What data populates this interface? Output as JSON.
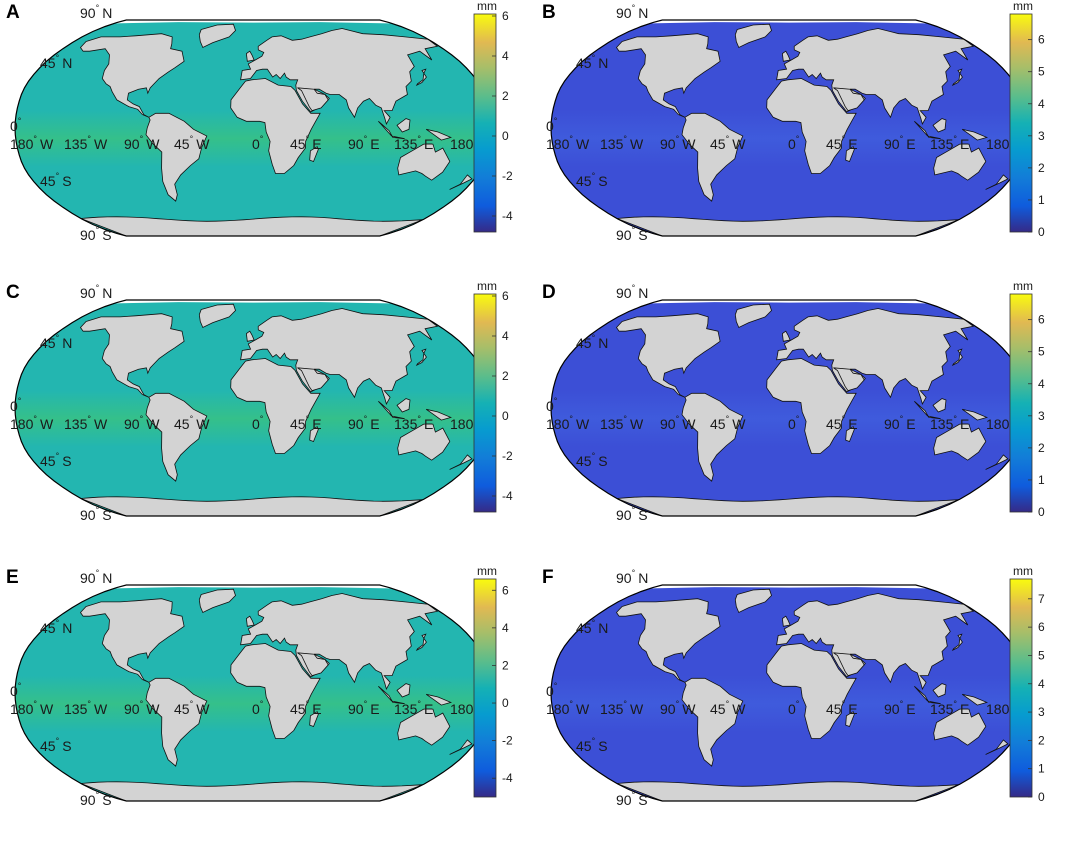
{
  "figure": {
    "colors": {
      "land": "#d3d3d3",
      "coast": "#111111",
      "diverging_sea": "#23b6b0",
      "diverging_band": "#35c08a",
      "sequential_sea": "#3c4fd6",
      "sequential_band": "#3f5bdc",
      "ice": "#ffffff"
    },
    "colormap": "parula",
    "panels": [
      {
        "id": "A",
        "letter": "A",
        "unit": "mm",
        "scale": "diverging",
        "ticks": [
          "6",
          "4",
          "2",
          "0",
          "-2",
          "-4"
        ],
        "tick_values": [
          6,
          4,
          2,
          0,
          -2,
          -4
        ],
        "range": [
          -4.8,
          6.1
        ],
        "lat_labels": [
          "90",
          "45",
          "0",
          "45",
          "90"
        ],
        "lat_hemis": [
          "N",
          "N",
          "",
          "S",
          "S"
        ],
        "lon_labels": [
          "180",
          "135",
          "90",
          "45",
          "0",
          "45",
          "90",
          "135",
          "180"
        ],
        "lon_hemis": [
          "W",
          "W",
          "W",
          "W",
          "",
          "E",
          "E",
          "E",
          ""
        ]
      },
      {
        "id": "B",
        "letter": "B",
        "unit": "mm",
        "scale": "sequential",
        "ticks": [
          "6",
          "5",
          "4",
          "3",
          "2",
          "1",
          "0"
        ],
        "tick_values": [
          6,
          5,
          4,
          3,
          2,
          1,
          0
        ],
        "range": [
          0,
          6.8
        ],
        "lat_labels": [
          "90",
          "45",
          "0",
          "45",
          "90"
        ],
        "lat_hemis": [
          "N",
          "N",
          "",
          "S",
          "S"
        ],
        "lon_labels": [
          "180",
          "135",
          "90",
          "45",
          "0",
          "45",
          "90",
          "135",
          "180"
        ],
        "lon_hemis": [
          "W",
          "W",
          "W",
          "W",
          "",
          "E",
          "E",
          "E",
          ""
        ]
      },
      {
        "id": "C",
        "letter": "C",
        "unit": "mm",
        "scale": "diverging",
        "ticks": [
          "6",
          "4",
          "2",
          "0",
          "-2",
          "-4"
        ],
        "tick_values": [
          6,
          4,
          2,
          0,
          -2,
          -4
        ],
        "range": [
          -4.8,
          6.1
        ],
        "lat_labels": [
          "90",
          "45",
          "0",
          "45",
          "90"
        ],
        "lat_hemis": [
          "N",
          "N",
          "",
          "S",
          "S"
        ],
        "lon_labels": [
          "180",
          "135",
          "90",
          "45",
          "0",
          "45",
          "90",
          "135",
          "180"
        ],
        "lon_hemis": [
          "W",
          "W",
          "W",
          "W",
          "",
          "E",
          "E",
          "E",
          ""
        ]
      },
      {
        "id": "D",
        "letter": "D",
        "unit": "mm",
        "scale": "sequential",
        "ticks": [
          "6",
          "5",
          "4",
          "3",
          "2",
          "1",
          "0"
        ],
        "tick_values": [
          6,
          5,
          4,
          3,
          2,
          1,
          0
        ],
        "range": [
          0,
          6.8
        ],
        "lat_labels": [
          "90",
          "45",
          "0",
          "45",
          "90"
        ],
        "lat_hemis": [
          "N",
          "N",
          "",
          "S",
          "S"
        ],
        "lon_labels": [
          "180",
          "135",
          "90",
          "45",
          "0",
          "45",
          "90",
          "135",
          "180"
        ],
        "lon_hemis": [
          "W",
          "W",
          "W",
          "W",
          "",
          "E",
          "E",
          "E",
          ""
        ]
      },
      {
        "id": "E",
        "letter": "E",
        "unit": "mm",
        "scale": "diverging",
        "ticks": [
          "6",
          "4",
          "2",
          "0",
          "-2",
          "-4"
        ],
        "tick_values": [
          6,
          4,
          2,
          0,
          -2,
          -4
        ],
        "range": [
          -5,
          6.6
        ],
        "lat_labels": [
          "90",
          "45",
          "0",
          "45",
          "90"
        ],
        "lat_hemis": [
          "N",
          "N",
          "",
          "S",
          "S"
        ],
        "lon_labels": [
          "180",
          "135",
          "90",
          "45",
          "0",
          "45",
          "90",
          "135",
          "180"
        ],
        "lon_hemis": [
          "W",
          "W",
          "W",
          "W",
          "",
          "E",
          "E",
          "E",
          ""
        ]
      },
      {
        "id": "F",
        "letter": "F",
        "unit": "mm",
        "scale": "sequential",
        "ticks": [
          "7",
          "6",
          "5",
          "4",
          "3",
          "2",
          "1",
          "0"
        ],
        "tick_values": [
          7,
          6,
          5,
          4,
          3,
          2,
          1,
          0
        ],
        "range": [
          0,
          7.7
        ],
        "lat_labels": [
          "90",
          "45",
          "0",
          "45",
          "90"
        ],
        "lat_hemis": [
          "N",
          "N",
          "",
          "S",
          "S"
        ],
        "lon_labels": [
          "180",
          "135",
          "90",
          "45",
          "0",
          "45",
          "90",
          "135",
          "180"
        ],
        "lon_hemis": [
          "W",
          "W",
          "W",
          "W",
          "",
          "E",
          "E",
          "E",
          ""
        ]
      }
    ]
  }
}
